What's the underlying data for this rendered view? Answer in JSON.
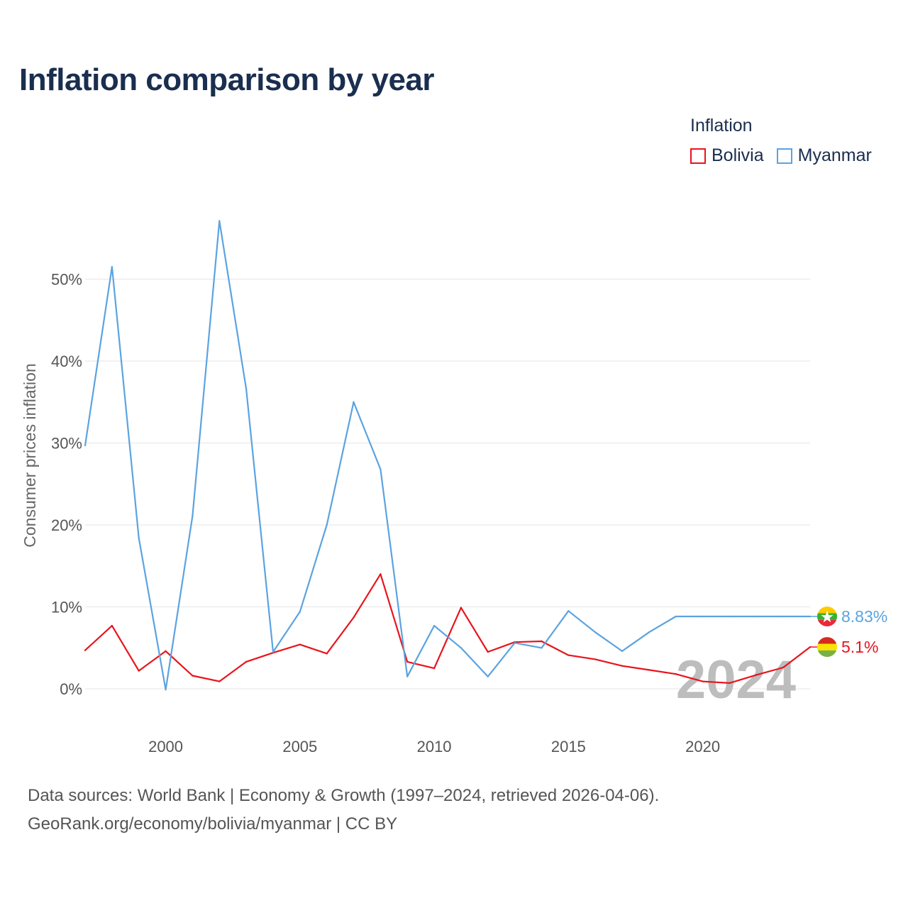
{
  "title": "Inflation comparison by year",
  "legend": {
    "title": "Inflation",
    "items": [
      {
        "name": "Bolivia",
        "color": "#e8141c"
      },
      {
        "name": "Myanmar",
        "color": "#5ba3e0"
      }
    ]
  },
  "footer": {
    "line1": "Data sources: World Bank | Economy & Growth (1997–2024, retrieved 2026-04-06).",
    "line2": "GeoRank.org/economy/bolivia/myanmar | CC BY"
  },
  "chart_data": {
    "type": "line",
    "title": "Inflation comparison by year",
    "xlabel": "",
    "ylabel": "Consumer prices inflation",
    "xlim": [
      1997,
      2024
    ],
    "ylim": [
      -5,
      60
    ],
    "x_ticks": [
      2000,
      2005,
      2010,
      2015,
      2020
    ],
    "y_ticks": [
      0,
      10,
      20,
      30,
      40,
      50
    ],
    "y_tick_labels": [
      "0%",
      "10%",
      "20%",
      "30%",
      "40%",
      "50%"
    ],
    "grid": true,
    "legend_position": "top-right",
    "year_watermark": "2024",
    "x": [
      1997,
      1998,
      1999,
      2000,
      2001,
      2002,
      2003,
      2004,
      2005,
      2006,
      2007,
      2008,
      2009,
      2010,
      2011,
      2012,
      2013,
      2014,
      2015,
      2016,
      2017,
      2018,
      2019,
      2020,
      2021,
      2022,
      2023,
      2024
    ],
    "series": [
      {
        "name": "Bolivia",
        "color": "#e8141c",
        "values": [
          4.7,
          7.7,
          2.2,
          4.6,
          1.6,
          0.9,
          3.3,
          4.4,
          5.4,
          4.3,
          8.7,
          14.0,
          3.3,
          2.5,
          9.9,
          4.5,
          5.7,
          5.8,
          4.1,
          3.6,
          2.8,
          2.3,
          1.8,
          0.9,
          0.7,
          1.7,
          2.6,
          5.1
        ],
        "end_label": "5.1%"
      },
      {
        "name": "Myanmar",
        "color": "#5ba3e0",
        "values": [
          29.7,
          51.5,
          18.4,
          -0.1,
          21.1,
          57.1,
          36.6,
          4.5,
          9.4,
          20.0,
          35.0,
          26.8,
          1.5,
          7.7,
          5.0,
          1.5,
          5.6,
          5.0,
          9.5,
          6.9,
          4.6,
          6.9,
          8.83,
          8.83,
          8.83,
          8.83,
          8.83,
          8.83
        ],
        "end_label": "8.83%"
      }
    ]
  }
}
